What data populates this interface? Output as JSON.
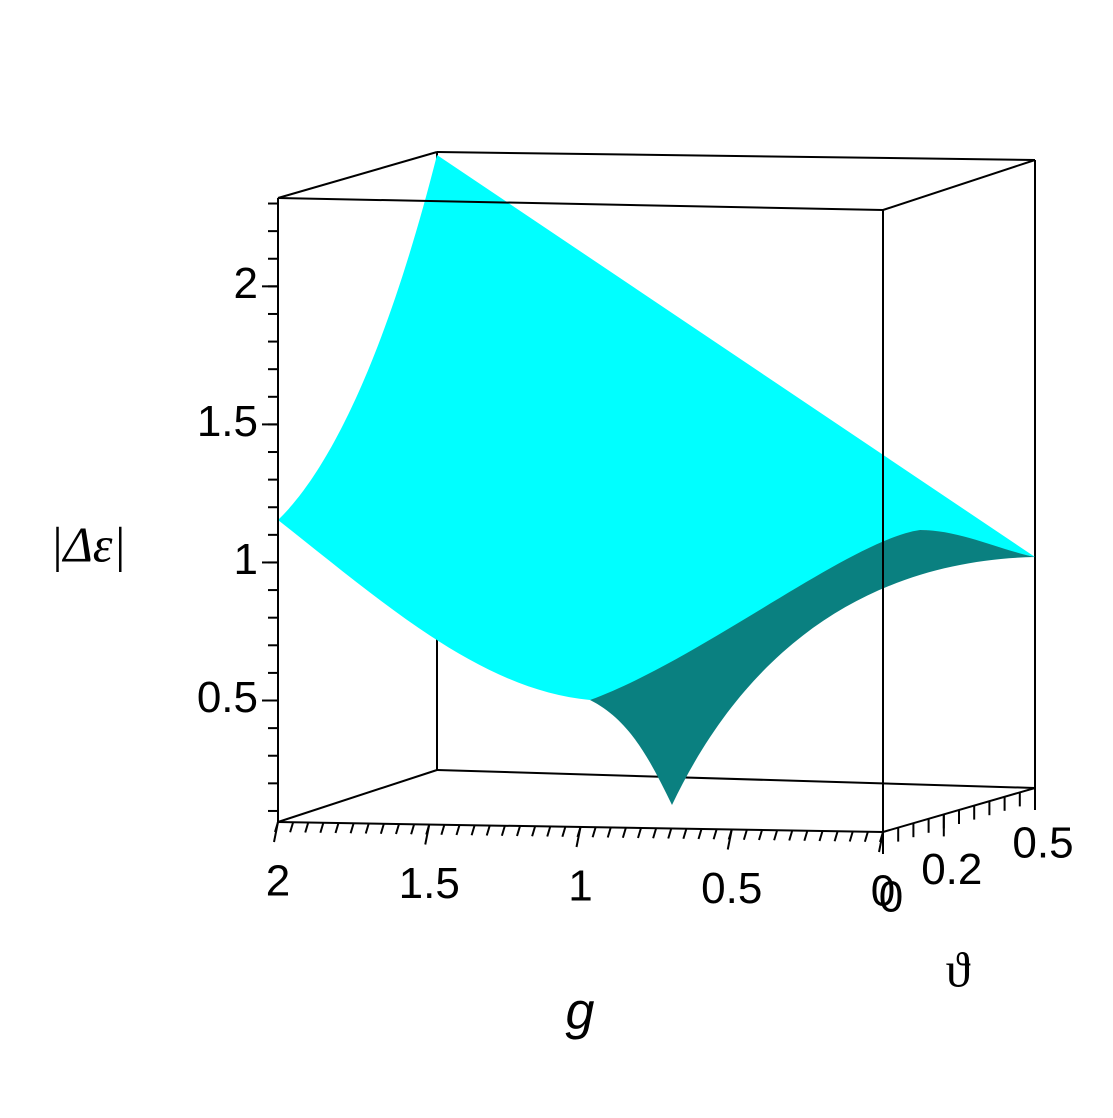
{
  "chart_data": {
    "type": "surface",
    "xlabel": "g",
    "ylabel": "ϑ",
    "zlabel": "|Δε|",
    "xlim": [
      2,
      0
    ],
    "xticks": [
      2,
      1.5,
      1,
      0.5,
      0
    ],
    "ylim": [
      0,
      0.5
    ],
    "yticks": [
      0,
      0.2,
      0.5
    ],
    "zlim": [
      0.06,
      2.32
    ],
    "zticks": [
      0.5,
      1,
      1.5,
      2
    ],
    "color": "#00ffff",
    "shade_color": "#0a8080"
  }
}
